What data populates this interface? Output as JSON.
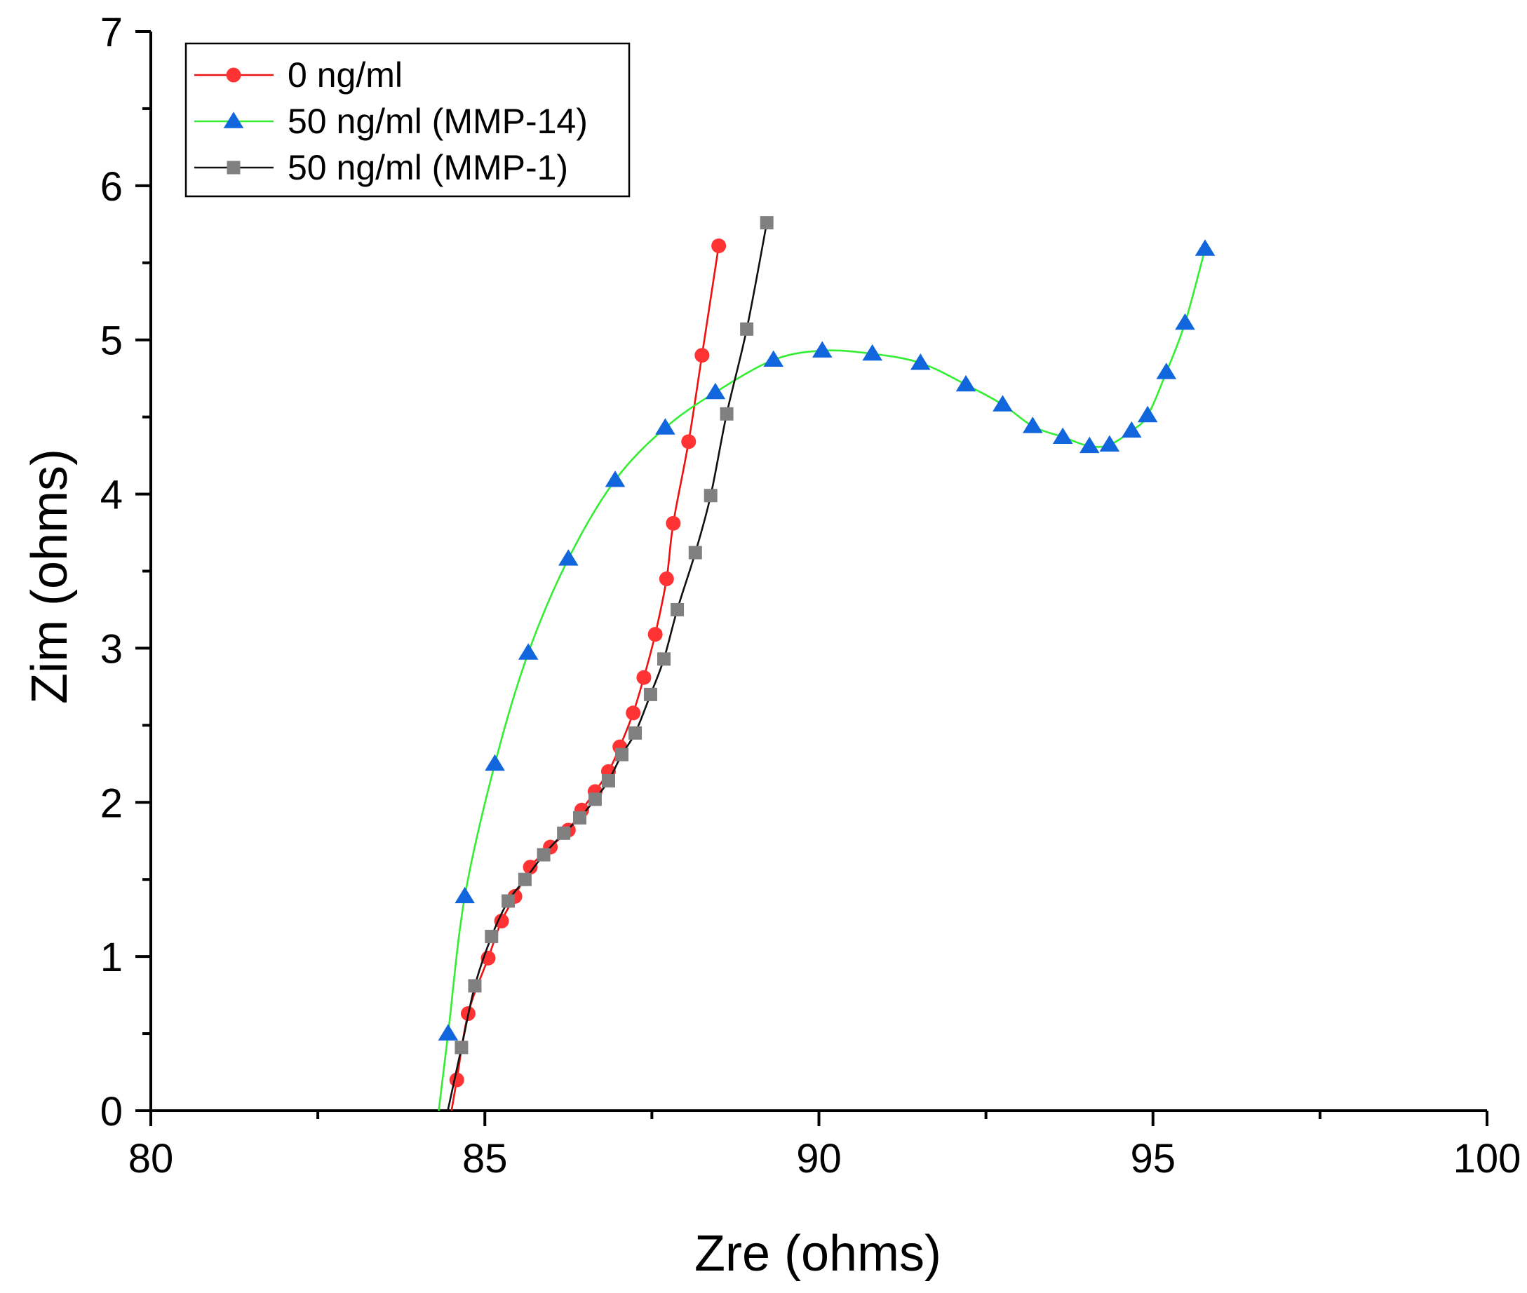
{
  "chart_data": {
    "type": "line",
    "title": "",
    "xlabel": "Zre (ohms)",
    "ylabel": "Zim (ohms)",
    "xlim": [
      80,
      100
    ],
    "ylim": [
      0,
      7
    ],
    "xticks": [
      "80",
      "85",
      "90",
      "95",
      "100"
    ],
    "yticks": [
      "0",
      "1",
      "2",
      "3",
      "4",
      "5",
      "6",
      "7"
    ],
    "grid": false,
    "legend_position": "top-left",
    "series": [
      {
        "name": "0 ng/ml",
        "color": "#ff3333",
        "line_color": "#ee1111",
        "marker": "circle",
        "x": [
          84.58,
          84.75,
          85.05,
          85.25,
          85.45,
          85.68,
          85.98,
          86.25,
          86.45,
          86.65,
          86.85,
          87.02,
          87.22,
          87.38,
          87.55,
          87.72,
          87.82,
          88.05,
          88.25,
          88.5
        ],
        "y": [
          0.2,
          0.63,
          0.99,
          1.23,
          1.39,
          1.58,
          1.71,
          1.82,
          1.95,
          2.07,
          2.2,
          2.36,
          2.58,
          2.81,
          3.09,
          3.45,
          3.81,
          4.34,
          4.9,
          5.61
        ]
      },
      {
        "name": "50 ng/ml (MMP-14)",
        "color": "#1166dd",
        "line_color": "#33ee33",
        "marker": "triangle",
        "x": [
          84.45,
          84.7,
          85.15,
          85.65,
          86.25,
          86.95,
          87.7,
          88.45,
          89.32,
          90.05,
          90.8,
          91.52,
          92.2,
          92.75,
          93.2,
          93.65,
          94.05,
          94.35,
          94.68,
          94.92,
          95.2,
          95.48,
          95.78
        ],
        "y": [
          0.5,
          1.39,
          2.25,
          2.97,
          3.58,
          4.09,
          4.43,
          4.66,
          4.87,
          4.93,
          4.91,
          4.85,
          4.71,
          4.58,
          4.44,
          4.37,
          4.31,
          4.32,
          4.41,
          4.51,
          4.79,
          5.11,
          5.59
        ]
      },
      {
        "name": "50 ng/ml (MMP-1)",
        "color": "#808080",
        "line_color": "#111111",
        "marker": "square",
        "x": [
          84.65,
          84.85,
          85.1,
          85.35,
          85.6,
          85.88,
          86.18,
          86.42,
          86.65,
          86.85,
          87.05,
          87.25,
          87.48,
          87.68,
          87.88,
          88.15,
          88.38,
          88.62,
          88.92,
          89.22
        ],
        "y": [
          0.41,
          0.81,
          1.13,
          1.36,
          1.5,
          1.66,
          1.8,
          1.9,
          2.02,
          2.14,
          2.31,
          2.45,
          2.7,
          2.93,
          3.25,
          3.62,
          3.99,
          4.52,
          5.07,
          5.76
        ]
      }
    ]
  }
}
